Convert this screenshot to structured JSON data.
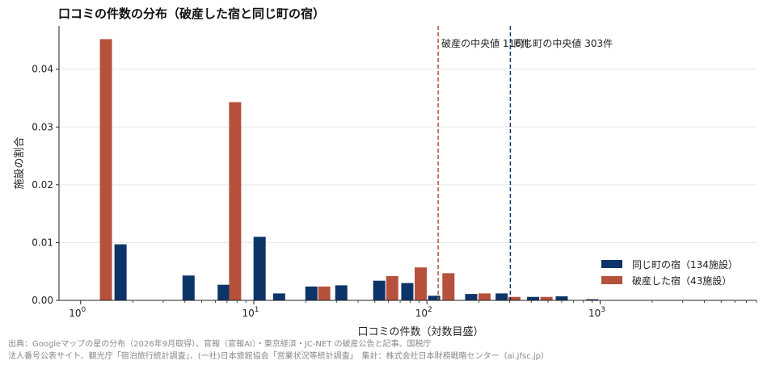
{
  "title": "口コミの件数の分布（破産した宿と同じ町の宿）",
  "footer": {
    "line1": "出典：Googleマップの星の分布（2026年9月取得）、官報（官報AI）・東京経済・JC-NET の破産公告と記事、国税庁",
    "line2": "法人番号公表サイト、観光庁「宿泊旅行統計調査」、(一社)日本旅館協会「営業状況等統計調査」　集計：株式会社日本財務戦略センター（ai.jfsc.jp）"
  },
  "colors": {
    "same_town": "#0d3468",
    "bankrupt": "#b5513c",
    "grid": "#e6e6e6",
    "axis": "#222222"
  },
  "chart_data": {
    "type": "bar",
    "xscale": "log",
    "xlabel": "口コミの件数（対数目盛）",
    "ylabel": "施設の割合",
    "xlim": [
      0.75,
      8000
    ],
    "ylim": [
      0,
      0.0475
    ],
    "yticks": [
      0.0,
      0.01,
      0.02,
      0.03,
      0.04
    ],
    "ytick_labels": [
      "0.00",
      "0.01",
      "0.02",
      "0.03",
      "0.04"
    ],
    "xticks": [
      1,
      10,
      100,
      1000
    ],
    "xtick_base": "10",
    "xtick_exponents": [
      "0",
      "1",
      "2",
      "3"
    ],
    "grid": true,
    "legend_position": "lower-right",
    "series": [
      {
        "key": "same_town",
        "name": "同じ町の宿（134施設）",
        "bars": [
          {
            "x": 1.7,
            "value": 0.0097
          },
          {
            "x": 4.2,
            "value": 0.0043
          },
          {
            "x": 6.7,
            "value": 0.0027
          },
          {
            "x": 10.8,
            "value": 0.011
          },
          {
            "x": 14.0,
            "value": 0.0012
          },
          {
            "x": 21.5,
            "value": 0.0024
          },
          {
            "x": 32.0,
            "value": 0.0026
          },
          {
            "x": 53.0,
            "value": 0.0034
          },
          {
            "x": 77.0,
            "value": 0.003
          },
          {
            "x": 110.0,
            "value": 0.0008
          },
          {
            "x": 180.0,
            "value": 0.0011
          },
          {
            "x": 270.0,
            "value": 0.0012
          },
          {
            "x": 410.0,
            "value": 0.0006
          },
          {
            "x": 600.0,
            "value": 0.0007
          },
          {
            "x": 900.0,
            "value": 0.0002
          }
        ]
      },
      {
        "key": "bankrupt",
        "name": "破産した宿（43施設）",
        "bars": [
          {
            "x": 1.4,
            "value": 0.0452
          },
          {
            "x": 7.8,
            "value": 0.0343
          },
          {
            "x": 25.5,
            "value": 0.0024
          },
          {
            "x": 63.0,
            "value": 0.0042
          },
          {
            "x": 92.0,
            "value": 0.0057
          },
          {
            "x": 133.0,
            "value": 0.0047
          },
          {
            "x": 215.0,
            "value": 0.0012
          },
          {
            "x": 320.0,
            "value": 0.0006
          },
          {
            "x": 490.0,
            "value": 0.0006
          }
        ]
      }
    ],
    "annotations": [
      {
        "key": "bankrupt",
        "x": 116,
        "label": "破産の中央値 116件"
      },
      {
        "key": "same_town",
        "x": 303,
        "label": "同じ町の中央値 303件"
      }
    ]
  }
}
